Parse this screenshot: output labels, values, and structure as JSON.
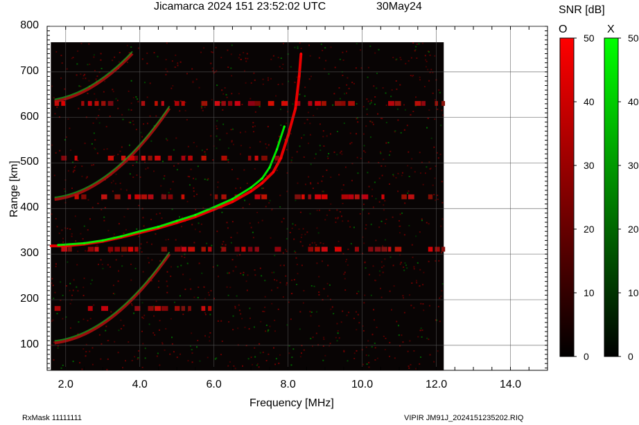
{
  "header": {
    "title": "Jicamarca 2024 151 23:52:02 UTC",
    "date": "30May24",
    "snr_label": "SNR [dB]"
  },
  "footer": {
    "rxmask": "RxMask 11111111",
    "filename": "VIPIR  JM91J_2024151235202.RIQ"
  },
  "colorbars": {
    "o": {
      "label": "O",
      "color": "#ff0000",
      "ticks": [
        "50",
        "40",
        "30",
        "20",
        "10",
        "0"
      ]
    },
    "x": {
      "label": "X",
      "color": "#00ff00",
      "ticks": [
        "50",
        "40",
        "30",
        "20",
        "10",
        "0"
      ]
    }
  },
  "chart_data": {
    "type": "scatter",
    "title": "Jicamarca 2024 151 23:52:02 UTC",
    "xlabel": "Frequency [MHz]",
    "ylabel": "Range [km]",
    "xlim": [
      1.5,
      15.0
    ],
    "ylim": [
      45,
      800
    ],
    "data_freq_extent": [
      1.6,
      12.2
    ],
    "data_range_extent": [
      45,
      765
    ],
    "x_ticks": [
      "2.0",
      "4.0",
      "6.0",
      "8.0",
      "10.0",
      "12.0",
      "14.0"
    ],
    "y_ticks": [
      "100",
      "200",
      "300",
      "400",
      "500",
      "600",
      "700",
      "800"
    ],
    "grid": true,
    "series": [
      {
        "name": "O",
        "color": "#ff0000",
        "points": [
          {
            "x": 1.6,
            "y": 318
          },
          {
            "x": 2.0,
            "y": 318
          },
          {
            "x": 2.5,
            "y": 322
          },
          {
            "x": 3.0,
            "y": 328
          },
          {
            "x": 3.5,
            "y": 337
          },
          {
            "x": 4.0,
            "y": 347
          },
          {
            "x": 4.5,
            "y": 357
          },
          {
            "x": 5.0,
            "y": 369
          },
          {
            "x": 5.5,
            "y": 382
          },
          {
            "x": 6.0,
            "y": 398
          },
          {
            "x": 6.5,
            "y": 415
          },
          {
            "x": 7.0,
            "y": 438
          },
          {
            "x": 7.3,
            "y": 456
          },
          {
            "x": 7.6,
            "y": 480
          },
          {
            "x": 7.8,
            "y": 510
          },
          {
            "x": 8.0,
            "y": 560
          },
          {
            "x": 8.2,
            "y": 620
          },
          {
            "x": 8.3,
            "y": 690
          },
          {
            "x": 8.35,
            "y": 740
          }
        ]
      },
      {
        "name": "X",
        "color": "#00ff00",
        "points": [
          {
            "x": 1.8,
            "y": 320
          },
          {
            "x": 2.5,
            "y": 324
          },
          {
            "x": 3.0,
            "y": 330
          },
          {
            "x": 3.5,
            "y": 339
          },
          {
            "x": 4.0,
            "y": 350
          },
          {
            "x": 4.5,
            "y": 360
          },
          {
            "x": 5.0,
            "y": 373
          },
          {
            "x": 5.5,
            "y": 386
          },
          {
            "x": 6.0,
            "y": 403
          },
          {
            "x": 6.5,
            "y": 421
          },
          {
            "x": 7.0,
            "y": 446
          },
          {
            "x": 7.3,
            "y": 466
          },
          {
            "x": 7.5,
            "y": 490
          },
          {
            "x": 7.7,
            "y": 530
          },
          {
            "x": 7.9,
            "y": 580
          }
        ]
      }
    ],
    "multihop_traces": [
      {
        "from": {
          "x": 1.7,
          "y": 105
        },
        "to": {
          "x": 4.8,
          "y": 300
        }
      },
      {
        "from": {
          "x": 1.7,
          "y": 420
        },
        "to": {
          "x": 4.8,
          "y": 620
        }
      },
      {
        "from": {
          "x": 1.7,
          "y": 635
        },
        "to": {
          "x": 3.8,
          "y": 740
        }
      }
    ],
    "echo_bands": [
      {
        "x0": 1.7,
        "x1": 12.2,
        "y": 425
      },
      {
        "x0": 1.7,
        "x1": 12.2,
        "y": 310
      },
      {
        "x0": 1.7,
        "x1": 6.5,
        "y": 180
      },
      {
        "x0": 1.7,
        "x1": 12.2,
        "y": 630
      },
      {
        "x0": 1.7,
        "x1": 8.0,
        "y": 510
      }
    ]
  }
}
